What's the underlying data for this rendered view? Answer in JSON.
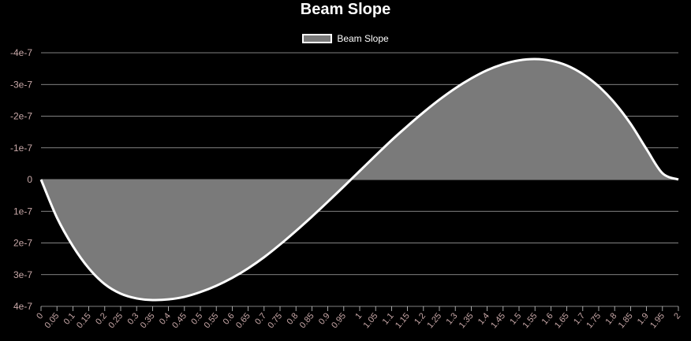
{
  "chart_data": {
    "type": "area",
    "title": "Beam Slope",
    "legend": {
      "position": "top",
      "entries": [
        "Beam Slope"
      ]
    },
    "colors": {
      "background": "#000000",
      "fill": "#7a7a7a",
      "line": "#ffffff",
      "grid": "#cccccc",
      "tick_label": "#c8a8a8",
      "title": "#ffffff"
    },
    "grid": true,
    "ylim": [
      -4e-07,
      4e-07
    ],
    "y_reversed": true,
    "y_ticks": [
      -4e-07,
      -3e-07,
      -2e-07,
      -1e-07,
      0,
      1e-07,
      2e-07,
      3e-07,
      4e-07
    ],
    "y_tick_labels": [
      "-4e-7",
      "-3e-7",
      "-2e-7",
      "-1e-7",
      "0",
      "1e-7",
      "2e-7",
      "3e-7",
      "4e-7"
    ],
    "x_tick_labels": [
      "0",
      "0.05",
      "0.1",
      "0.15",
      "0.2",
      "0.25",
      "0.3",
      "0.35",
      "0.4",
      "0.45",
      "0.5",
      "0.55",
      "0.6",
      "0.65",
      "0.7",
      "0.75",
      "0.8",
      "0.85",
      "0.9",
      "0.95",
      "1",
      "1.05",
      "1.1",
      "1.15",
      "1.2",
      "1.25",
      "1.3",
      "1.35",
      "1.4",
      "1.45",
      "1.5",
      "1.55",
      "1.6",
      "1.65",
      "1.7",
      "1.75",
      "1.8",
      "1.85",
      "1.9",
      "1.95",
      "2"
    ],
    "series": [
      {
        "name": "Beam Slope",
        "x": [
          0,
          0.05,
          0.1,
          0.15,
          0.2,
          0.25,
          0.3,
          0.35,
          0.4,
          0.45,
          0.5,
          0.55,
          0.6,
          0.65,
          0.7,
          0.75,
          0.8,
          0.85,
          0.9,
          0.95,
          1,
          1.05,
          1.1,
          1.15,
          1.2,
          1.25,
          1.3,
          1.35,
          1.4,
          1.45,
          1.5,
          1.55,
          1.6,
          1.65,
          1.7,
          1.75,
          1.8,
          1.85,
          1.9,
          1.95,
          2
        ],
        "values": [
          0,
          1.2e-07,
          2.1e-07,
          2.8e-07,
          3.3e-07,
          3.6e-07,
          3.75e-07,
          3.8e-07,
          3.78e-07,
          3.7e-07,
          3.55e-07,
          3.35e-07,
          3.1e-07,
          2.8e-07,
          2.45e-07,
          2.05e-07,
          1.62e-07,
          1.17e-07,
          7e-08,
          2.2e-08,
          -2.7e-08,
          -7.6e-08,
          -1.24e-07,
          -1.69e-07,
          -2.12e-07,
          -2.52e-07,
          -2.88e-07,
          -3.19e-07,
          -3.45e-07,
          -3.64e-07,
          -3.76e-07,
          -3.8e-07,
          -3.75e-07,
          -3.6e-07,
          -3.33e-07,
          -2.94e-07,
          -2.42e-07,
          -1.76e-07,
          -9.6e-08,
          -2e-08,
          0
        ]
      }
    ]
  }
}
